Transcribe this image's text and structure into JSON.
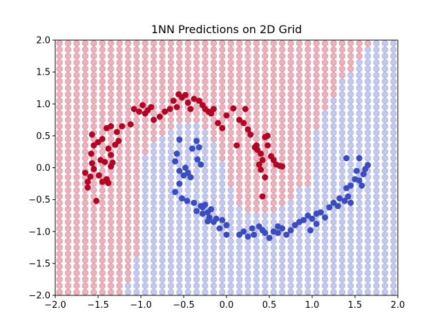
{
  "chart_data": {
    "type": "scatter",
    "title": "1NN Predictions on 2D Grid",
    "xlabel": "",
    "ylabel": "",
    "xlim": [
      -2.0,
      2.0
    ],
    "ylim": [
      -2.0,
      2.0
    ],
    "xticks": [
      -2.0,
      -1.5,
      -1.0,
      -0.5,
      0.0,
      0.5,
      1.0,
      1.5,
      2.0
    ],
    "yticks": [
      -2.0,
      -1.5,
      -1.0,
      -0.5,
      0.0,
      0.5,
      1.0,
      1.5,
      2.0
    ],
    "xtick_labels": [
      "−2.0",
      "−1.5",
      "−1.0",
      "−0.5",
      "0.0",
      "0.5",
      "1.0",
      "1.5",
      "2.0"
    ],
    "ytick_labels": [
      "−2.0",
      "−1.5",
      "−1.0",
      "−0.5",
      "0.0",
      "0.5",
      "1.0",
      "1.5",
      "2.0"
    ],
    "grid": false,
    "legend": "none",
    "colors": {
      "class0": "#b40426",
      "class1": "#3b4cc0",
      "grid_class0": "#f2c5c8",
      "grid_class1": "#c9d1f2",
      "grid_alpha": 0.3
    },
    "grid_predictions": {
      "x_start": -1.95,
      "x_end": 1.95,
      "y_start": -1.95,
      "y_end": 1.95,
      "step": 0.1,
      "note_class": "0 = red, 1 = blue",
      "description": "predicted class at each grid point from 1-nearest-neighbour on the training points"
    },
    "series": [
      {
        "label_class": 0,
        "points": [
          [
            -1.62,
            -0.31
          ],
          [
            -1.65,
            -0.08
          ],
          [
            -1.62,
            -0.22
          ],
          [
            -1.59,
            -0.14
          ],
          [
            -1.55,
            -0.02
          ],
          [
            -1.52,
            -0.52
          ],
          [
            -1.49,
            -0.12
          ],
          [
            -1.47,
            0.12
          ],
          [
            -1.45,
            -0.22
          ],
          [
            -1.42,
            0.09
          ],
          [
            -1.4,
            -0.18
          ],
          [
            -1.38,
            -0.24
          ],
          [
            -1.35,
            0.02
          ],
          [
            -1.33,
            0.08
          ],
          [
            -1.57,
            0.07
          ],
          [
            -1.58,
            0.22
          ],
          [
            -1.55,
            0.35
          ],
          [
            -1.57,
            0.52
          ],
          [
            -1.5,
            0.4
          ],
          [
            -1.45,
            0.45
          ],
          [
            -1.38,
            0.3
          ],
          [
            -1.35,
            0.2
          ],
          [
            -1.3,
            0.36
          ],
          [
            -1.26,
            0.42
          ],
          [
            -1.28,
            0.56
          ],
          [
            -1.35,
            0.65
          ],
          [
            -1.4,
            0.62
          ],
          [
            -1.22,
            0.65
          ],
          [
            -1.12,
            0.68
          ],
          [
            -1.08,
            0.92
          ],
          [
            -1.02,
            0.88
          ],
          [
            -0.98,
            0.98
          ],
          [
            -0.95,
            0.85
          ],
          [
            -0.92,
            0.9
          ],
          [
            -0.88,
            0.95
          ],
          [
            -0.85,
            0.75
          ],
          [
            -0.78,
            0.8
          ],
          [
            -0.72,
            0.88
          ],
          [
            -0.66,
            0.92
          ],
          [
            -0.62,
            1.05
          ],
          [
            -0.58,
            0.95
          ],
          [
            -0.56,
            1.15
          ],
          [
            -0.52,
            1.1
          ],
          [
            -0.48,
            1.14
          ],
          [
            -0.45,
            1.02
          ],
          [
            -0.42,
            0.92
          ],
          [
            -0.38,
            1.08
          ],
          [
            -0.32,
            1.05
          ],
          [
            -0.28,
            0.98
          ],
          [
            -0.25,
            0.92
          ],
          [
            -0.21,
            0.88
          ],
          [
            -0.18,
            0.85
          ],
          [
            -0.15,
            0.92
          ],
          [
            -0.1,
            0.7
          ],
          [
            -0.05,
            0.62
          ],
          [
            0.0,
            0.82
          ],
          [
            0.08,
            0.93
          ],
          [
            0.15,
            0.75
          ],
          [
            0.2,
            0.7
          ],
          [
            0.25,
            0.6
          ],
          [
            0.28,
            0.52
          ],
          [
            0.33,
            0.32
          ],
          [
            0.36,
            0.28
          ],
          [
            0.4,
            0.22
          ],
          [
            0.42,
            0.12
          ],
          [
            0.38,
            0.05
          ],
          [
            0.45,
            0.48
          ],
          [
            0.48,
            0.35
          ],
          [
            0.52,
            0.18
          ],
          [
            0.55,
            0.12
          ],
          [
            0.58,
            0.05
          ],
          [
            0.62,
            0.03
          ],
          [
            0.65,
            0.02
          ],
          [
            0.4,
            -0.03
          ],
          [
            0.45,
            -0.15
          ],
          [
            0.42,
            -0.45
          ],
          [
            0.35,
            0.35
          ],
          [
            0.48,
            0.5
          ],
          [
            0.22,
            0.92
          ],
          [
            0.12,
            0.35
          ]
        ]
      },
      {
        "label_class": 1,
        "points": [
          [
            -0.55,
            0.44
          ],
          [
            -0.58,
            0.22
          ],
          [
            -0.6,
            0.1
          ],
          [
            -0.55,
            -0.05
          ],
          [
            -0.5,
            -0.12
          ],
          [
            -0.45,
            -0.08
          ],
          [
            -0.42,
            -0.15
          ],
          [
            -0.48,
            0.0
          ],
          [
            -0.4,
            0.3
          ],
          [
            -0.35,
            0.42
          ],
          [
            -0.32,
            0.32
          ],
          [
            -0.34,
            0.13
          ],
          [
            -0.3,
            0.05
          ],
          [
            -0.55,
            -0.25
          ],
          [
            -0.6,
            -0.38
          ],
          [
            -0.52,
            -0.48
          ],
          [
            -0.46,
            -0.52
          ],
          [
            -0.38,
            -0.55
          ],
          [
            -0.35,
            -0.68
          ],
          [
            -0.28,
            -0.62
          ],
          [
            -0.25,
            -0.58
          ],
          [
            -0.22,
            -0.7
          ],
          [
            -0.2,
            -0.78
          ],
          [
            -0.15,
            -0.85
          ],
          [
            -0.12,
            -0.8
          ],
          [
            -0.08,
            -0.95
          ],
          [
            -0.05,
            -0.82
          ],
          [
            -0.22,
            -0.84
          ],
          [
            -0.28,
            -0.72
          ],
          [
            0.0,
            -0.9
          ],
          [
            0.15,
            -1.05
          ],
          [
            0.2,
            -1.0
          ],
          [
            0.25,
            -1.08
          ],
          [
            0.32,
            -1.05
          ],
          [
            0.38,
            -0.92
          ],
          [
            0.45,
            -1.02
          ],
          [
            0.5,
            -1.1
          ],
          [
            0.55,
            -1.0
          ],
          [
            0.6,
            -0.92
          ],
          [
            0.65,
            -0.95
          ],
          [
            0.7,
            -1.05
          ],
          [
            0.75,
            -0.98
          ],
          [
            0.8,
            -0.9
          ],
          [
            0.85,
            -0.85
          ],
          [
            0.9,
            -0.82
          ],
          [
            0.95,
            -0.75
          ],
          [
            1.0,
            -0.8
          ],
          [
            1.05,
            -0.72
          ],
          [
            1.1,
            -0.7
          ],
          [
            1.15,
            -0.78
          ],
          [
            1.2,
            -0.62
          ],
          [
            1.25,
            -0.55
          ],
          [
            1.3,
            -0.6
          ],
          [
            1.32,
            -0.48
          ],
          [
            1.38,
            -0.52
          ],
          [
            1.42,
            -0.45
          ],
          [
            1.4,
            -0.32
          ],
          [
            1.45,
            -0.28
          ],
          [
            1.5,
            -0.18
          ],
          [
            1.55,
            -0.2
          ],
          [
            1.58,
            -0.28
          ],
          [
            1.6,
            -0.1
          ],
          [
            1.62,
            -0.02
          ],
          [
            1.65,
            0.04
          ],
          [
            1.55,
            0.15
          ],
          [
            1.52,
            -0.05
          ],
          [
            1.4,
            0.15
          ],
          [
            1.45,
            -0.55
          ],
          [
            0.3,
            -0.95
          ],
          [
            0.42,
            -0.98
          ],
          [
            0.6,
            -1.02
          ],
          [
            0.98,
            -0.98
          ],
          [
            1.05,
            -0.88
          ],
          [
            -0.18,
            -0.65
          ],
          [
            -0.3,
            -0.6
          ],
          [
            0.0,
            -1.05
          ]
        ]
      }
    ]
  }
}
